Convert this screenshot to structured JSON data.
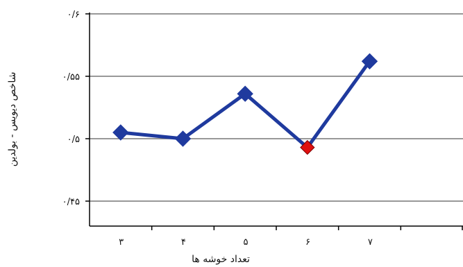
{
  "chart_data": {
    "type": "line",
    "title": "",
    "xlabel": "تعداد خوشه ها",
    "ylabel": "شاخص دیویس - بولدین",
    "x": [
      2.5,
      3.5,
      4.5,
      5.5,
      6.5
    ],
    "x_tick_values": [
      3,
      4,
      5,
      6,
      7
    ],
    "x_tick_labels": [
      "۳",
      "۴",
      "۵",
      "۶",
      "۷"
    ],
    "xlim": [
      2,
      8
    ],
    "ylim": [
      0.43,
      0.6
    ],
    "y_tick_values": [
      0.6,
      0.55,
      0.5,
      0.45
    ],
    "y_tick_labels": [
      "۰/۶",
      "۰/۵۵",
      "۰/۵",
      "۰/۴۵"
    ],
    "grid": "horizontal",
    "legend": "none",
    "series": [
      {
        "values": [
          0.505,
          0.5,
          0.536,
          0.493,
          0.562
        ],
        "color": "#1f3a9e"
      }
    ],
    "highlight": {
      "index": 3,
      "color": "#e01010"
    },
    "gridline_color": "#777777"
  }
}
